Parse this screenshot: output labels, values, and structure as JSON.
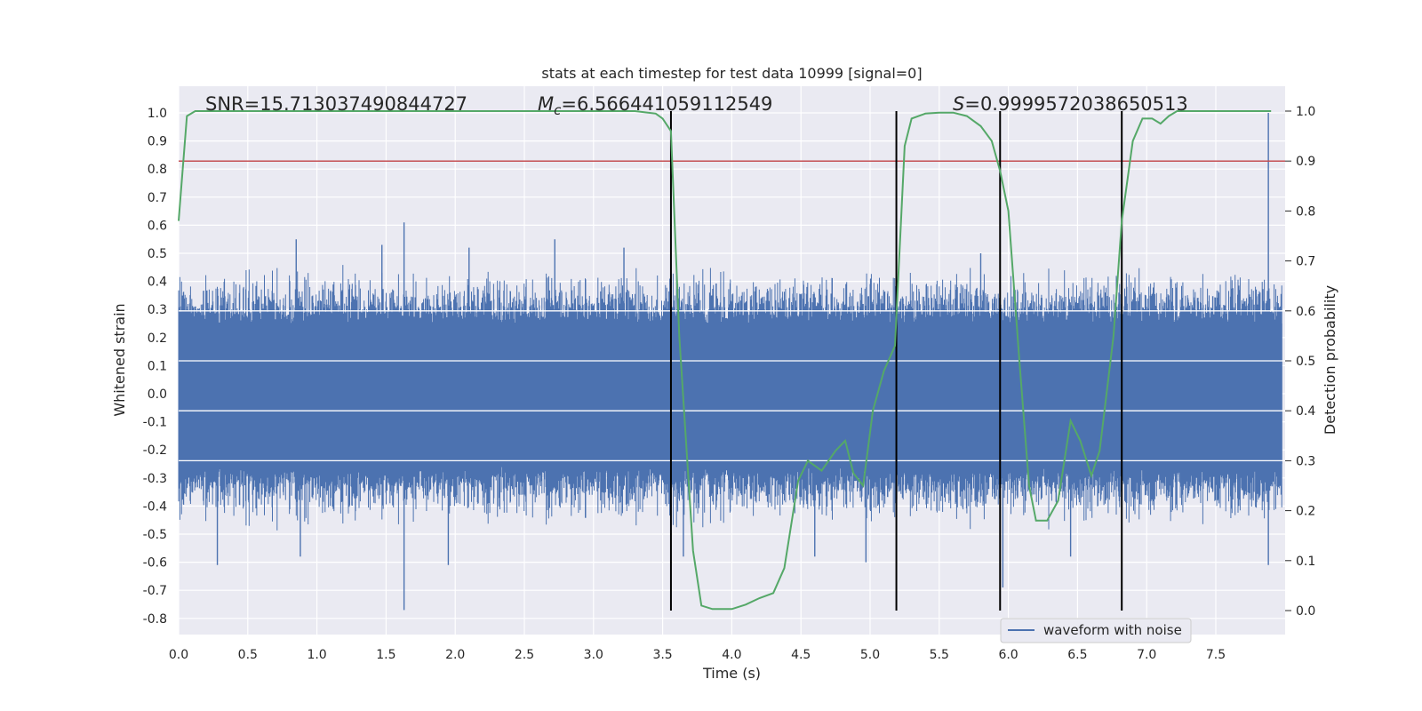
{
  "chart_data": {
    "type": "line",
    "title": "stats at each timestep for test data 10999 [signal=0]",
    "xlabel": "Time (s)",
    "ylabel": "Whitened strain",
    "ylabel_right": "Detection probability",
    "xlim": [
      0.0,
      8.0
    ],
    "ylim": [
      -0.85,
      1.08
    ],
    "ylim_right": [
      -0.045,
      1.045
    ],
    "x_ticks": [
      "0.0",
      "0.5",
      "1.0",
      "1.5",
      "2.0",
      "2.5",
      "3.0",
      "3.5",
      "4.0",
      "4.5",
      "5.0",
      "5.5",
      "6.0",
      "6.5",
      "7.0",
      "7.5"
    ],
    "y_ticks": [
      "1.0",
      "0.9",
      "0.8",
      "0.7",
      "0.6",
      "0.5",
      "0.4",
      "0.3",
      "0.2",
      "0.1",
      "0.0",
      "-0.1",
      "-0.2",
      "-0.3",
      "-0.4",
      "-0.5",
      "-0.6",
      "-0.7",
      "-0.8"
    ],
    "y_ticks_right": [
      "1.0",
      "0.9",
      "0.8",
      "0.7",
      "0.6",
      "0.5",
      "0.4",
      "0.3",
      "0.2",
      "0.1",
      "0.0"
    ],
    "annotations": {
      "snr": "SNR=15.713037490844727",
      "mc_symbol": "M",
      "mc_sub": "c",
      "mc_value": "=6.566441059112549",
      "s_symbol": "S",
      "s_value": "=0.9999572038650513"
    },
    "legend": {
      "label": "waveform with noise",
      "placement": "lower-right"
    },
    "threshold": {
      "value": 0.9,
      "color": "#c44e52",
      "axis": "right"
    },
    "vlines": [
      3.56,
      5.19,
      5.94,
      6.82
    ],
    "waveform": {
      "name": "waveform with noise",
      "color": "#4c72b0",
      "band_low": -0.25,
      "band_high": 0.25,
      "spikes": [
        {
          "x": 1.63,
          "y": -0.77
        },
        {
          "x": 1.63,
          "y": 0.61
        },
        {
          "x": 0.28,
          "y": -0.61
        },
        {
          "x": 0.85,
          "y": 0.55
        },
        {
          "x": 1.47,
          "y": 0.53
        },
        {
          "x": 2.72,
          "y": 0.55
        },
        {
          "x": 3.22,
          "y": 0.52
        },
        {
          "x": 4.6,
          "y": -0.58
        },
        {
          "x": 4.97,
          "y": -0.6
        },
        {
          "x": 5.96,
          "y": -0.69
        },
        {
          "x": 7.88,
          "y": 1.0
        },
        {
          "x": 7.88,
          "y": -0.61
        },
        {
          "x": 1.95,
          "y": -0.61
        },
        {
          "x": 2.1,
          "y": 0.52
        },
        {
          "x": 0.88,
          "y": -0.58
        },
        {
          "x": 3.65,
          "y": -0.58
        },
        {
          "x": 6.45,
          "y": -0.58
        },
        {
          "x": 5.8,
          "y": 0.5
        }
      ]
    },
    "probability": {
      "name": "detection probability",
      "color": "#55a868",
      "x": [
        0.0,
        0.06,
        0.12,
        0.3,
        0.5,
        1.0,
        2.0,
        3.0,
        3.3,
        3.45,
        3.5,
        3.56,
        3.62,
        3.72,
        3.78,
        3.86,
        4.0,
        4.1,
        4.2,
        4.3,
        4.38,
        4.48,
        4.55,
        4.65,
        4.75,
        4.82,
        4.88,
        4.95,
        5.02,
        5.1,
        5.18,
        5.25,
        5.3,
        5.4,
        5.5,
        5.6,
        5.7,
        5.8,
        5.88,
        5.94,
        6.0,
        6.08,
        6.15,
        6.2,
        6.28,
        6.36,
        6.45,
        6.52,
        6.6,
        6.66,
        6.76,
        6.82,
        6.9,
        6.97,
        7.04,
        7.1,
        7.16,
        7.22,
        7.4,
        7.9
      ],
      "y": [
        0.78,
        0.99,
        1.0,
        1.0,
        1.0,
        1.0,
        1.0,
        1.0,
        1.0,
        0.995,
        0.985,
        0.96,
        0.55,
        0.12,
        0.01,
        0.003,
        0.003,
        0.012,
        0.025,
        0.035,
        0.085,
        0.26,
        0.3,
        0.28,
        0.32,
        0.34,
        0.275,
        0.25,
        0.4,
        0.48,
        0.53,
        0.93,
        0.985,
        0.995,
        0.997,
        0.997,
        0.99,
        0.97,
        0.94,
        0.88,
        0.8,
        0.5,
        0.25,
        0.18,
        0.18,
        0.22,
        0.38,
        0.34,
        0.27,
        0.32,
        0.55,
        0.78,
        0.94,
        0.985,
        0.985,
        0.975,
        0.99,
        1.0,
        1.0,
        1.0
      ]
    }
  }
}
